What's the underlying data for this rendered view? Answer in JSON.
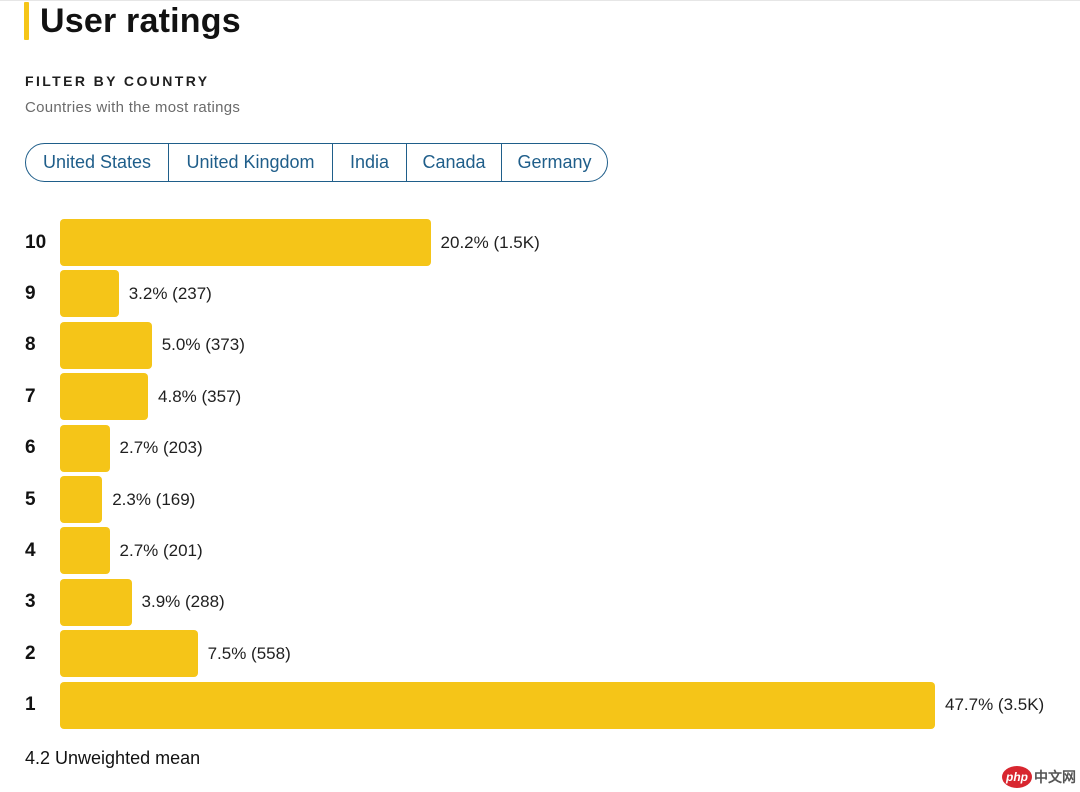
{
  "header": {
    "title": "User ratings",
    "accent_color": "#f5c518"
  },
  "filter": {
    "label": "FILTER BY COUNTRY",
    "subtitle": "Countries with the most ratings",
    "chips": [
      {
        "label": "United States"
      },
      {
        "label": "United Kingdom"
      },
      {
        "label": "India"
      },
      {
        "label": "Canada"
      },
      {
        "label": "Germany"
      }
    ],
    "chip_color": "#1f5e8a"
  },
  "chart_data": {
    "type": "bar",
    "orientation": "horizontal",
    "title": "User ratings",
    "bar_color": "#f5c518",
    "categories": [
      "10",
      "9",
      "8",
      "7",
      "6",
      "5",
      "4",
      "3",
      "2",
      "1"
    ],
    "values": [
      20.2,
      3.2,
      5.0,
      4.8,
      2.7,
      2.3,
      2.7,
      3.9,
      7.5,
      47.7
    ],
    "value_labels": [
      "20.2% (1.5K)",
      "3.2% (237)",
      "5.0% (373)",
      "4.8% (357)",
      "2.7% (203)",
      "2.3% (169)",
      "2.7% (201)",
      "3.9% (288)",
      "7.5% (558)",
      "47.7% (3.5K)"
    ],
    "unit": "%"
  },
  "summary": {
    "mean_text": "4.2 Unweighted mean"
  },
  "watermark": {
    "logo": "php",
    "text": "中文网"
  }
}
